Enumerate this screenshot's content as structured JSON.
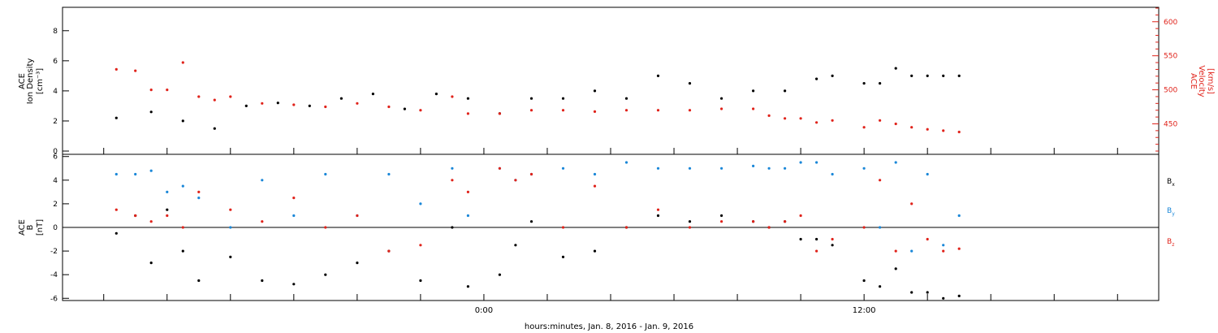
{
  "footer_label": "hours:minutes, Jan.  8, 2016 - Jan.  9, 2016",
  "colors": {
    "black": "#000000",
    "red": "#e0231b",
    "blue": "#1a87d8"
  },
  "chart_data": [
    {
      "type": "scatter",
      "panel": "ion-density-velocity",
      "ylabel": [
        "ACE",
        "Ion Density",
        "[cm⁻³]"
      ],
      "y2label": [
        "ACE",
        "Velocity",
        "[km/s]"
      ],
      "ylim": [
        0,
        9.5
      ],
      "y2lim": [
        410,
        620
      ],
      "yticks": [
        "0",
        "2",
        "4",
        "6",
        "8"
      ],
      "y2ticks": [
        "450",
        "500",
        "550",
        "600"
      ],
      "xticks": [
        "0:00",
        "12:00"
      ],
      "series": [
        {
          "name": "Ion Density",
          "color": "black",
          "axis": "left",
          "x": [
            -11.6,
            -10.5,
            -9.5,
            -8.5,
            -7.5,
            -6.5,
            -5.5,
            -4.5,
            -3.5,
            -2.5,
            -1.5,
            -0.5,
            0.5,
            1.5,
            2.5,
            3.5,
            4.5,
            5.5,
            6.5,
            7.5,
            8.5,
            9.5,
            10.5,
            11.0,
            12.0,
            12.5,
            13.0,
            13.5,
            14.0,
            14.5,
            15.0
          ],
          "values": [
            2.2,
            2.6,
            2.0,
            1.5,
            3.0,
            3.2,
            3.0,
            3.5,
            3.8,
            2.8,
            3.8,
            3.5,
            2.5,
            3.5,
            3.5,
            4.0,
            3.5,
            5.0,
            4.5,
            3.5,
            4.0,
            4.0,
            4.8,
            5.0,
            4.5,
            4.5,
            5.5,
            5.0,
            5.0,
            5.0,
            5.0
          ]
        },
        {
          "name": "Velocity",
          "color": "red",
          "axis": "right",
          "x": [
            -11.6,
            -11.0,
            -10.5,
            -10.0,
            -9.5,
            -9.0,
            -8.5,
            -8.0,
            -7.0,
            -6.0,
            -5.0,
            -4.0,
            -3.0,
            -2.0,
            -1.0,
            -0.5,
            0.5,
            1.5,
            2.5,
            3.5,
            4.5,
            5.5,
            6.5,
            7.5,
            8.5,
            9.0,
            9.5,
            10.0,
            10.5,
            11.0,
            12.0,
            12.5,
            13.0,
            13.5,
            14.0,
            14.5,
            15.0
          ],
          "values": [
            530,
            528,
            500,
            500,
            540,
            490,
            485,
            490,
            480,
            478,
            475,
            480,
            475,
            470,
            490,
            465,
            465,
            470,
            470,
            468,
            470,
            470,
            470,
            472,
            472,
            462,
            458,
            458,
            452,
            455,
            445,
            455,
            450,
            445,
            442,
            440,
            438
          ]
        }
      ]
    },
    {
      "type": "scatter",
      "panel": "magnetic-field",
      "ylabel": [
        "ACE",
        "B",
        "[nT]"
      ],
      "ylim": [
        -6.5,
        6.5
      ],
      "yticks": [
        "6",
        "4",
        "2",
        "0",
        "-2",
        "-4",
        "-6"
      ],
      "xticks": [
        "0:00",
        "12:00"
      ],
      "legend_position": "right",
      "series": [
        {
          "name": "Bx",
          "color": "black",
          "x": [
            -11.6,
            -11.0,
            -10.5,
            -10.0,
            -9.5,
            -9.0,
            -8.0,
            -7.0,
            -6.0,
            -5.0,
            -4.0,
            -3.0,
            -2.0,
            -1.0,
            -0.5,
            0.5,
            1.0,
            1.5,
            2.5,
            3.5,
            4.5,
            5.5,
            6.5,
            7.5,
            8.5,
            9.0,
            9.5,
            10.0,
            10.5,
            11.0,
            12.0,
            12.5,
            13.0,
            13.5,
            14.0,
            14.5,
            15.0
          ],
          "values": [
            -0.5,
            1.0,
            -3.0,
            1.5,
            -2.0,
            -4.5,
            -2.5,
            -4.5,
            -4.8,
            -4.0,
            -3.0,
            -2.0,
            -4.5,
            0.0,
            -5.0,
            -4.0,
            -1.5,
            0.5,
            -2.5,
            -2.0,
            0.0,
            1.0,
            0.5,
            1.0,
            0.5,
            0.0,
            0.5,
            -1.0,
            -1.0,
            -1.5,
            -4.5,
            -5.0,
            -3.5,
            -5.5,
            -5.5,
            -6.0,
            -5.8
          ]
        },
        {
          "name": "By",
          "color": "blue",
          "x": [
            -11.6,
            -11.0,
            -10.5,
            -10.0,
            -9.5,
            -9.0,
            -8.0,
            -7.0,
            -6.0,
            -5.0,
            -4.0,
            -3.0,
            -2.0,
            -1.0,
            -0.5,
            0.5,
            1.0,
            1.5,
            2.5,
            3.5,
            4.5,
            5.5,
            6.5,
            7.5,
            8.5,
            9.0,
            9.5,
            10.0,
            10.5,
            11.0,
            12.0,
            12.5,
            13.0,
            13.5,
            14.0,
            14.5,
            15.0
          ],
          "values": [
            4.5,
            4.5,
            4.8,
            3.0,
            3.5,
            2.5,
            0.0,
            4.0,
            1.0,
            4.5,
            1.0,
            4.5,
            2.0,
            5.0,
            1.0,
            5.0,
            4.0,
            4.5,
            5.0,
            4.5,
            5.5,
            5.0,
            5.0,
            5.0,
            5.2,
            5.0,
            5.0,
            5.5,
            5.5,
            4.5,
            5.0,
            0.0,
            5.5,
            -2.0,
            4.5,
            -1.5,
            1.0
          ]
        },
        {
          "name": "Bz",
          "color": "red",
          "x": [
            -11.6,
            -11.0,
            -10.5,
            -10.0,
            -9.5,
            -9.0,
            -8.0,
            -7.0,
            -6.0,
            -5.0,
            -4.0,
            -3.0,
            -2.0,
            -1.0,
            -0.5,
            0.5,
            1.0,
            1.5,
            2.5,
            3.5,
            4.5,
            5.5,
            6.5,
            7.5,
            8.5,
            9.0,
            9.5,
            10.0,
            10.5,
            11.0,
            12.0,
            12.5,
            13.0,
            13.5,
            14.0,
            14.5,
            15.0
          ],
          "values": [
            1.5,
            1.0,
            0.5,
            1.0,
            0.0,
            3.0,
            1.5,
            0.5,
            2.5,
            0.0,
            1.0,
            -2.0,
            -1.5,
            4.0,
            3.0,
            5.0,
            4.0,
            4.5,
            0.0,
            3.5,
            0.0,
            1.5,
            0.0,
            0.5,
            0.5,
            0.0,
            0.5,
            1.0,
            -2.0,
            -1.0,
            0.0,
            4.0,
            -2.0,
            2.0,
            -1.0,
            -2.0,
            -1.8
          ]
        }
      ]
    }
  ]
}
